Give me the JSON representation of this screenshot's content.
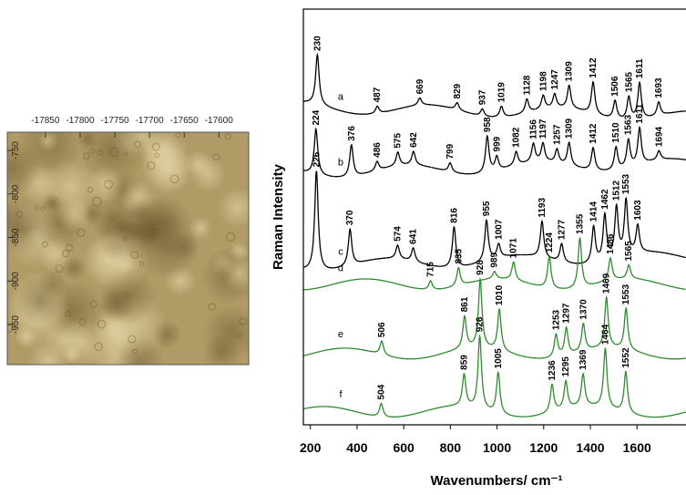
{
  "chart_data": [
    {
      "type": "image",
      "xlim": [
        -17905,
        -17557
      ],
      "ylim": [
        -996,
        -729
      ],
      "xticks": [
        -17850,
        -17800,
        -17750,
        -17700,
        -17650,
        -17600
      ],
      "yticks": [
        -750,
        -800,
        -850,
        -900,
        -950
      ]
    },
    {
      "type": "line",
      "ylabel": "Raman Intensity",
      "xlabel": "Wavenumbers/ cm⁻¹",
      "xlim": [
        170,
        1810
      ],
      "xticks": [
        200,
        400,
        600,
        800,
        1000,
        1200,
        1400,
        1600
      ],
      "series": [
        {
          "name": "a",
          "color": "#000000",
          "x": [
            230,
            487,
            669,
            829,
            937,
            1019,
            1128,
            1198,
            1247,
            1309,
            1412,
            1506,
            1565,
            1611,
            1693
          ],
          "values": [
            55,
            8,
            8,
            8,
            8,
            12,
            15,
            15,
            15,
            25,
            35,
            20,
            25,
            40,
            15
          ]
        },
        {
          "name": "b",
          "color": "#000000",
          "x": [
            224,
            376,
            486,
            575,
            642,
            799,
            958,
            999,
            1082,
            1156,
            1197,
            1257,
            1309,
            1412,
            1510,
            1563,
            1611,
            1694
          ],
          "values": [
            50,
            35,
            10,
            15,
            15,
            10,
            40,
            15,
            15,
            20,
            20,
            15,
            25,
            25,
            25,
            30,
            40,
            10
          ]
        },
        {
          "name": "c",
          "color": "#000000",
          "x": [
            226,
            370,
            574,
            641,
            816,
            955,
            1007,
            1193,
            1277,
            1414,
            1462,
            1512,
            1553,
            1603
          ],
          "values": [
            110,
            40,
            15,
            15,
            45,
            45,
            15,
            40,
            20,
            40,
            50,
            55,
            60,
            30
          ]
        },
        {
          "name": "d",
          "color": "#2e8b2e",
          "x": [
            715,
            835,
            989,
            1071,
            1224,
            1355,
            1486,
            1565
          ],
          "values": [
            10,
            20,
            8,
            20,
            35,
            55,
            25,
            15
          ]
        },
        {
          "name": "e",
          "color": "#2e8b2e",
          "x": [
            506,
            861,
            928,
            1010,
            1253,
            1297,
            1370,
            1469,
            1553
          ],
          "values": [
            15,
            35,
            75,
            45,
            25,
            30,
            30,
            55,
            45
          ]
        },
        {
          "name": "f",
          "color": "#2e8b2e",
          "x": [
            504,
            859,
            926,
            1005,
            1236,
            1295,
            1369,
            1464,
            1552
          ],
          "values": [
            15,
            35,
            80,
            45,
            30,
            30,
            35,
            65,
            45
          ]
        }
      ]
    }
  ]
}
